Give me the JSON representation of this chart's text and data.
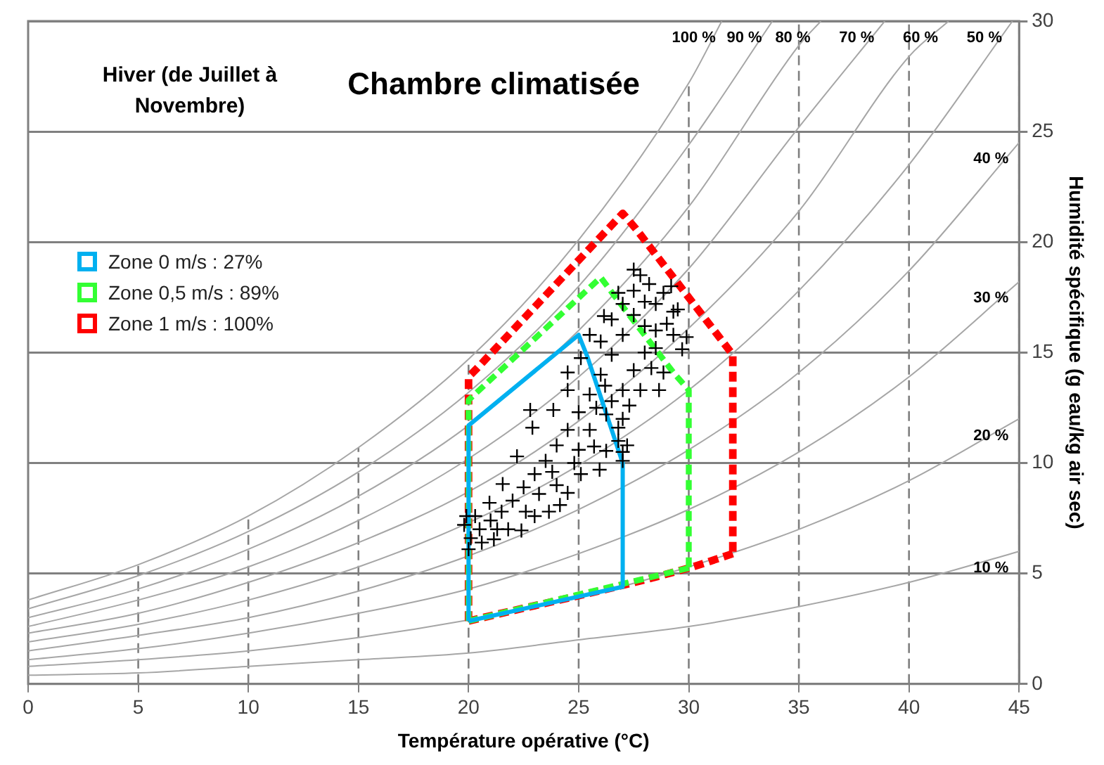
{
  "chart_data": {
    "type": "line",
    "title": "Chambre climatisée",
    "xlabel": "Température opérative (°C)",
    "ylabel": "Humidité spécifique (g eau/kg air sec)",
    "xlim": [
      0,
      45
    ],
    "xticks": [
      0,
      5,
      10,
      15,
      20,
      25,
      30,
      35,
      40,
      45
    ],
    "ylim": [
      0,
      30
    ],
    "yticks": [
      0,
      5,
      10,
      15,
      20,
      25,
      30
    ],
    "grid": true,
    "legend": "top left",
    "annotations": [
      "Hiver (de Juillet à Novembre)",
      {
        "text": "100 %",
        "x": 31.5,
        "y": 30
      },
      {
        "text": "90 %",
        "x": 33.8,
        "y": 30
      },
      {
        "text": "80 %",
        "x": 36.0,
        "y": 30
      },
      {
        "text": "70 %",
        "x": 38.9,
        "y": 30
      },
      {
        "text": "60 %",
        "x": 41.8,
        "y": 30
      },
      {
        "text": "50 %",
        "x": 44.7,
        "y": 30
      },
      {
        "text": "40 %",
        "x": 45,
        "y": 24.5
      },
      {
        "text": "30 %",
        "x": 45,
        "y": 18.2
      },
      {
        "text": "20 %",
        "x": 45,
        "y": 12.0
      },
      {
        "text": "10 %",
        "x": 45,
        "y": 6.0
      }
    ],
    "series": [
      {
        "color": "#a6a6a6",
        "marker": "none",
        "line_style": "solid",
        "x": [
          0,
          5,
          10,
          15,
          20,
          25,
          30,
          31.5
        ],
        "values": [
          3.8,
          5.4,
          7.6,
          10.7,
          14.7,
          20.1,
          27.2,
          30
        ]
      },
      {
        "color": "#a6a6a6",
        "marker": "none",
        "line_style": "solid",
        "x": [
          0,
          5,
          10,
          15,
          20,
          25,
          30,
          33.8
        ],
        "values": [
          3.4,
          4.9,
          6.9,
          9.6,
          13.2,
          18.0,
          24.4,
          30
        ]
      },
      {
        "color": "#a6a6a6",
        "marker": "none",
        "line_style": "solid",
        "x": [
          0,
          5,
          10,
          15,
          20,
          25,
          30,
          35,
          36.0
        ],
        "values": [
          3.0,
          4.3,
          6.1,
          8.5,
          11.7,
          16.0,
          21.6,
          28.9,
          30
        ]
      },
      {
        "color": "#a6a6a6",
        "marker": "none",
        "line_style": "solid",
        "x": [
          0,
          5,
          10,
          15,
          20,
          25,
          30,
          35,
          38.9
        ],
        "values": [
          2.6,
          3.8,
          5.3,
          7.4,
          10.2,
          13.9,
          18.8,
          25.2,
          30
        ]
      },
      {
        "color": "#a6a6a6",
        "marker": "none",
        "line_style": "solid",
        "x": [
          0,
          5,
          10,
          15,
          20,
          25,
          30,
          35,
          40,
          41.8
        ],
        "values": [
          2.3,
          3.2,
          4.6,
          6.4,
          8.7,
          11.9,
          16.1,
          21.4,
          28.4,
          30
        ]
      },
      {
        "color": "#a6a6a6",
        "marker": "none",
        "line_style": "solid",
        "x": [
          0,
          5,
          10,
          15,
          20,
          25,
          30,
          35,
          40,
          44.7
        ],
        "values": [
          1.9,
          2.7,
          3.8,
          5.3,
          7.3,
          9.9,
          13.3,
          17.8,
          23.5,
          30
        ]
      },
      {
        "color": "#a6a6a6",
        "marker": "none",
        "line_style": "solid",
        "x": [
          0,
          5,
          10,
          15,
          20,
          25,
          30,
          35,
          40,
          45
        ],
        "values": [
          1.5,
          2.2,
          3.0,
          4.2,
          5.8,
          7.9,
          10.6,
          14.1,
          18.7,
          24.5
        ]
      },
      {
        "color": "#a6a6a6",
        "marker": "none",
        "line_style": "solid",
        "x": [
          0,
          5,
          10,
          15,
          20,
          25,
          30,
          35,
          40,
          45
        ],
        "values": [
          1.1,
          1.6,
          2.3,
          3.2,
          4.3,
          5.9,
          7.9,
          10.5,
          13.9,
          18.2
        ]
      },
      {
        "color": "#a6a6a6",
        "marker": "none",
        "line_style": "solid",
        "x": [
          0,
          5,
          10,
          15,
          20,
          25,
          30,
          35,
          40,
          45
        ],
        "values": [
          0.8,
          1.1,
          1.5,
          2.1,
          2.9,
          3.9,
          5.3,
          7.0,
          9.2,
          12.0
        ]
      },
      {
        "color": "#a6a6a6",
        "marker": "none",
        "line_style": "solid",
        "x": [
          0,
          5,
          10,
          15,
          20,
          25,
          30,
          35,
          40,
          45
        ],
        "values": [
          0.4,
          0.5,
          0.8,
          1.1,
          1.4,
          2.0,
          2.6,
          3.5,
          4.6,
          6.0
        ]
      },
      {
        "name": "Zone 0 m/s : 27%",
        "color": "#00b0f0",
        "marker": "none",
        "line_style": "solid",
        "x": [
          20,
          20,
          25,
          25.4,
          27,
          27
        ],
        "values": [
          2.85,
          11.7,
          15.8,
          14.8,
          10.0,
          4.4
        ]
      },
      {
        "color": "#00b0f0",
        "marker": "none",
        "line_style": "solid",
        "x": [
          20,
          27
        ],
        "values": [
          2.85,
          4.4
        ]
      },
      {
        "name": "Zone 0,5 m/s : 89%",
        "color": "#33ff33",
        "marker": "none",
        "line_style": "dashed",
        "x": [
          20,
          20,
          26,
          26.6,
          29.3,
          30,
          30
        ],
        "values": [
          2.85,
          12.85,
          18.4,
          17.6,
          14.1,
          13.3,
          5.25
        ]
      },
      {
        "color": "#33ff33",
        "marker": "none",
        "line_style": "dashed",
        "x": [
          20,
          30
        ],
        "values": [
          2.85,
          5.25
        ]
      },
      {
        "name": "Zone 1 m/s : 100%",
        "color": "#ff0000",
        "marker": "none",
        "line_style": "dashed",
        "x": [
          20,
          20,
          20.4,
          27,
          27.6,
          32,
          32
        ],
        "values": [
          2.85,
          13.9,
          14.3,
          21.3,
          20.6,
          14.9,
          5.9
        ]
      },
      {
        "color": "#ff0000",
        "marker": "none",
        "line_style": "dashed",
        "x": [
          20,
          30,
          32
        ],
        "values": [
          2.85,
          5.25,
          5.9
        ]
      },
      {
        "type": "scatter",
        "color": "#000000",
        "marker": "cross",
        "x": [
          20,
          19.9,
          19.8,
          20.1,
          20.3,
          20.5,
          20.6,
          20.95,
          21,
          21.15,
          21.5,
          21.55,
          21.8,
          22,
          22.2,
          22.4,
          22.5,
          22.8,
          22.9,
          23,
          23,
          23.5,
          23.65,
          23.85,
          24,
          24,
          24.15,
          24.5,
          24.5,
          24.5,
          24.5,
          25,
          25.1,
          25.1,
          25,
          25.5,
          25.5,
          25.5,
          25.7,
          25.95,
          26,
          26,
          26.15,
          26.25,
          26.25,
          26.5,
          26.5,
          26.5,
          26.8,
          26.8,
          26.8,
          27,
          27,
          27,
          27,
          27,
          27,
          27.2,
          27.5,
          27.5,
          27.5,
          27.5,
          27.8,
          27.8,
          28,
          28,
          28,
          28.2,
          28.5,
          28.5,
          28.5,
          28.65,
          28.85,
          28.85,
          29,
          29.2,
          29.3,
          29.3,
          29.5,
          29.7,
          29.9,
          28.3,
          27.3,
          26.2,
          25.8,
          24.8,
          23.8,
          23.2,
          22.6,
          21.3
        ],
        "values": [
          6.1,
          7.6,
          7.2,
          6.6,
          7.6,
          7.0,
          6.4,
          8.2,
          7.4,
          6.55,
          7.8,
          9.05,
          7.0,
          8.3,
          10.3,
          6.95,
          8.9,
          12.4,
          11.6,
          9.5,
          7.6,
          10.1,
          7.8,
          12.4,
          10.8,
          9.0,
          8.1,
          11.5,
          13.3,
          14.1,
          8.65,
          12.3,
          14.75,
          9.5,
          10.6,
          13.1,
          15.8,
          11.5,
          10.75,
          9.7,
          14.0,
          15.5,
          16.65,
          12.2,
          10.55,
          14.9,
          16.5,
          12.8,
          17.7,
          11.6,
          11.0,
          15.8,
          17.2,
          13.3,
          12.0,
          10.1,
          10.5,
          10.8,
          16.7,
          17.8,
          18.75,
          14.2,
          18.5,
          13.3,
          17.3,
          15.0,
          16.2,
          18.1,
          16.0,
          15.2,
          17.2,
          13.3,
          14.1,
          17.7,
          16.3,
          18.0,
          15.8,
          16.85,
          16.95,
          15.15,
          15.7,
          14.3,
          12.6,
          13.5,
          12.5,
          10.0,
          9.6,
          8.6,
          7.8,
          7.0
        ]
      }
    ]
  }
}
